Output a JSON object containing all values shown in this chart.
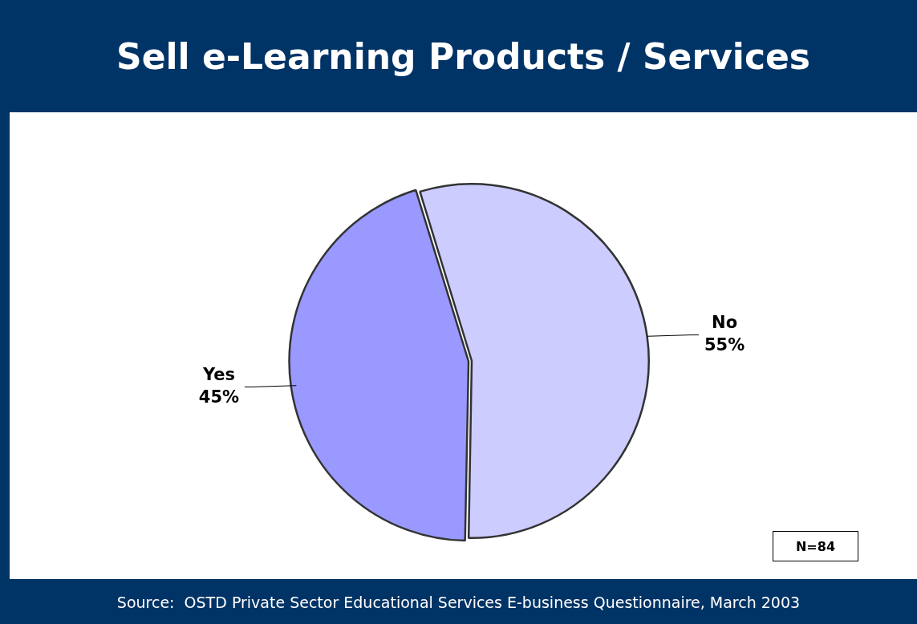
{
  "chart_data": {
    "type": "pie",
    "title": "Sell e-Learning Products / Services",
    "categories": [
      "No",
      "Yes"
    ],
    "values": [
      55,
      45
    ],
    "colors": [
      "#ccccff",
      "#9999ff"
    ],
    "value_labels": [
      "55%",
      "45%"
    ],
    "legend": false,
    "annotations": [
      "N=84",
      "Source:  OSTD Private Sector Educational Services E-business Questionnaire, March 2003"
    ]
  }
}
